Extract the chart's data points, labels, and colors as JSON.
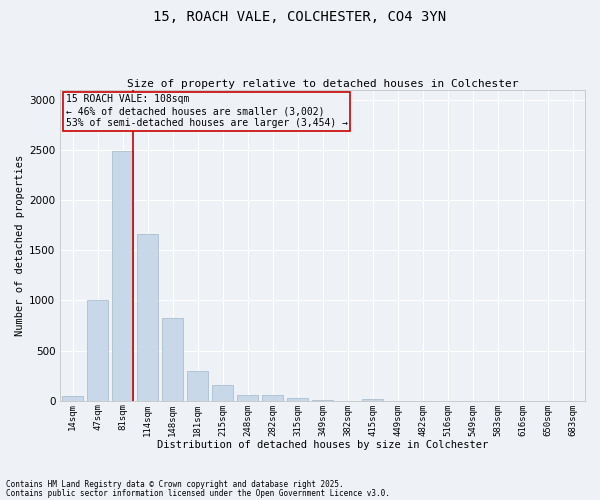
{
  "title_line1": "15, ROACH VALE, COLCHESTER, CO4 3YN",
  "title_line2": "Size of property relative to detached houses in Colchester",
  "xlabel": "Distribution of detached houses by size in Colchester",
  "ylabel": "Number of detached properties",
  "footnote_line1": "Contains HM Land Registry data © Crown copyright and database right 2025.",
  "footnote_line2": "Contains public sector information licensed under the Open Government Licence v3.0.",
  "annotation_title": "15 ROACH VALE: 108sqm",
  "annotation_line2": "← 46% of detached houses are smaller (3,002)",
  "annotation_line3": "53% of semi-detached houses are larger (3,454) →",
  "bar_labels": [
    "14sqm",
    "47sqm",
    "81sqm",
    "114sqm",
    "148sqm",
    "181sqm",
    "215sqm",
    "248sqm",
    "282sqm",
    "315sqm",
    "349sqm",
    "382sqm",
    "415sqm",
    "449sqm",
    "482sqm",
    "516sqm",
    "549sqm",
    "583sqm",
    "616sqm",
    "650sqm",
    "683sqm"
  ],
  "bar_values": [
    50,
    1005,
    2490,
    1665,
    830,
    295,
    155,
    55,
    55,
    30,
    10,
    0,
    20,
    0,
    0,
    0,
    0,
    0,
    0,
    0,
    0
  ],
  "bar_color": "#c8d8e8",
  "bar_edge_color": "#a0b8cc",
  "vline_bar_index": 2,
  "vline_color": "#cc0000",
  "annotation_box_color": "#cc0000",
  "background_color": "#eef2f7",
  "ylim": [
    0,
    3100
  ],
  "yticks": [
    0,
    500,
    1000,
    1500,
    2000,
    2500,
    3000
  ],
  "grid_color": "#ffffff",
  "figsize": [
    6.0,
    5.0
  ],
  "dpi": 100
}
